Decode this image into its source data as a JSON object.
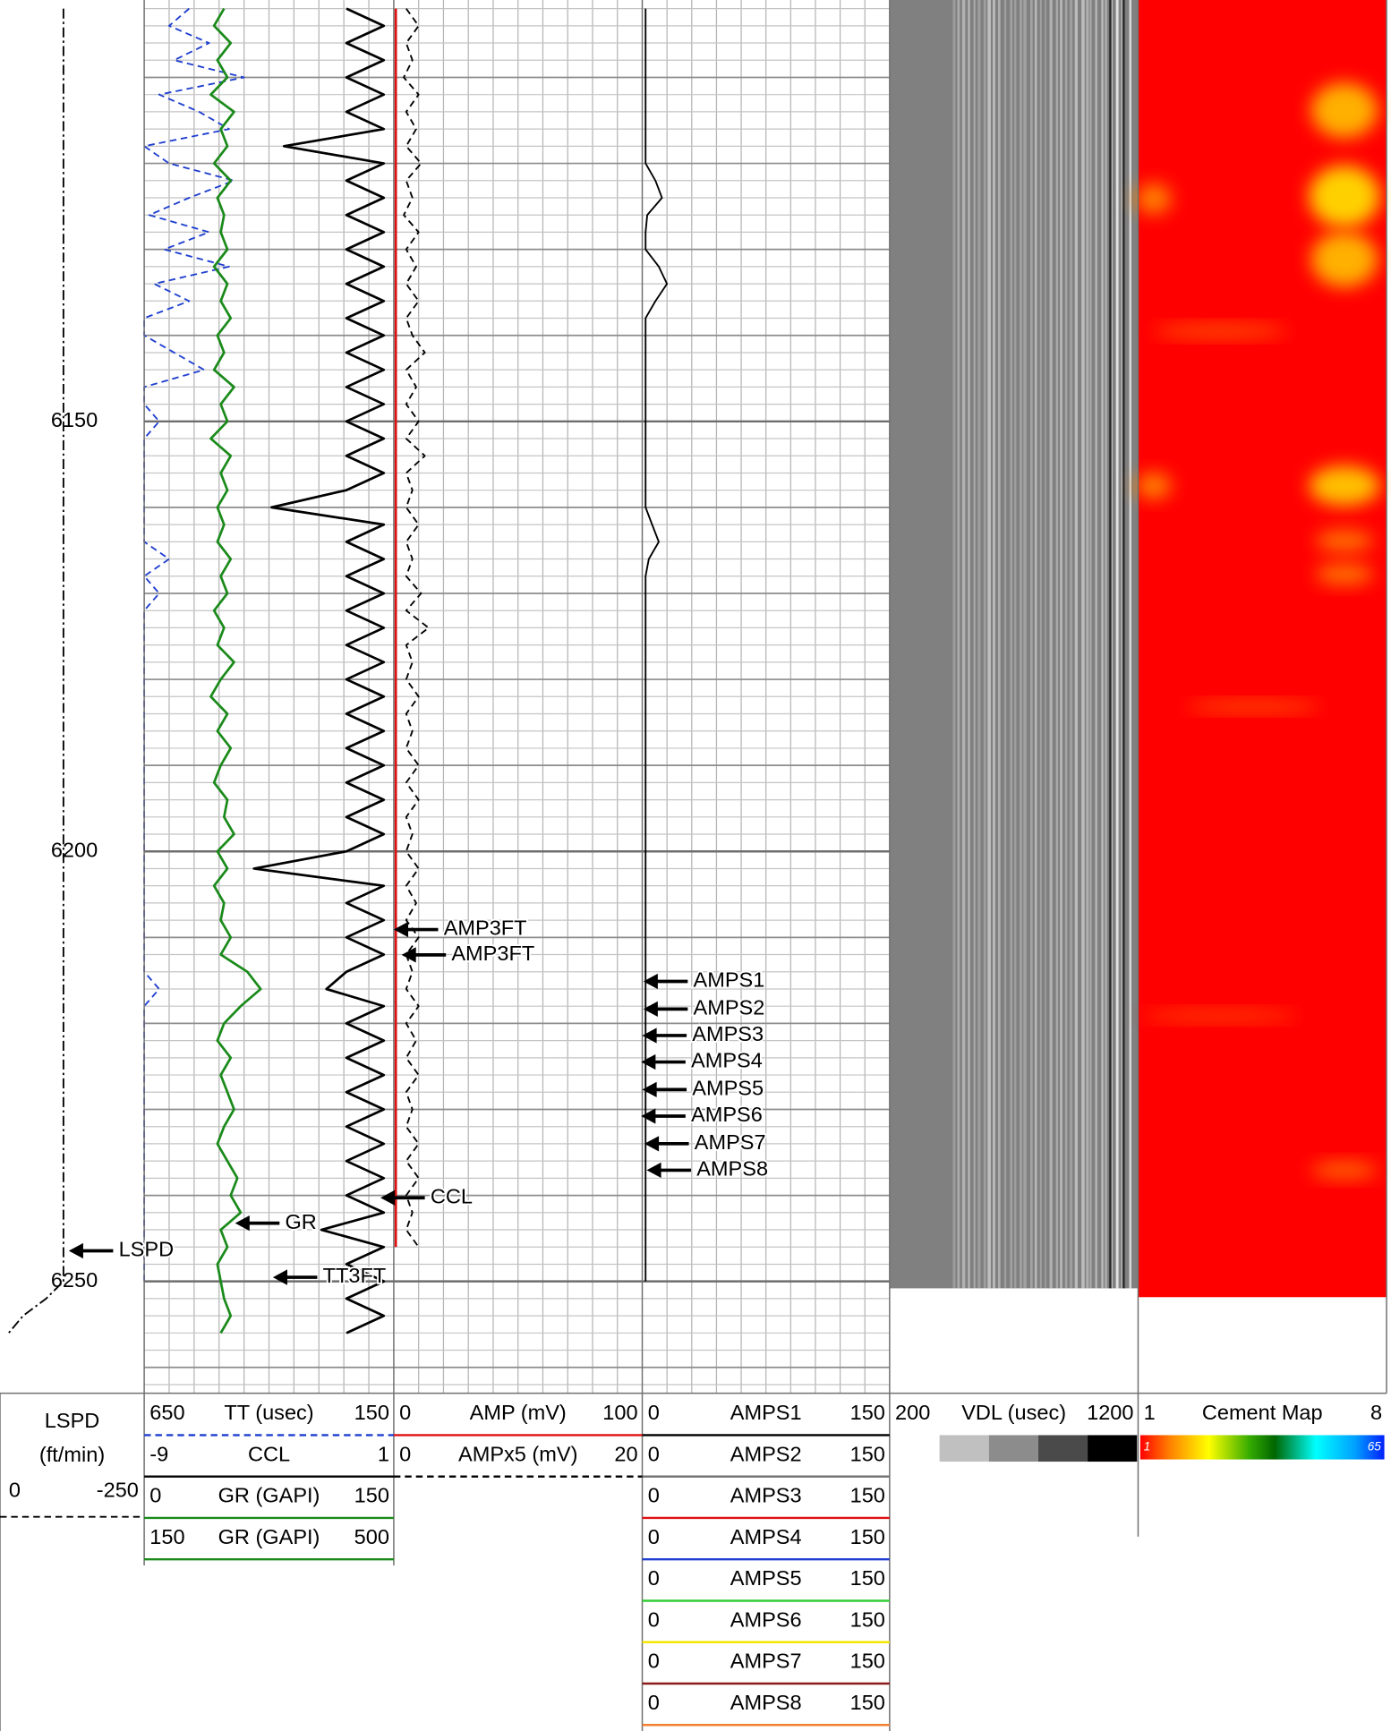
{
  "chart_data": {
    "type": "well-log",
    "ylim": [
      6101,
      6263
    ],
    "yticks": [
      6150,
      6200,
      6250
    ],
    "grid": true,
    "depth": [
      6102,
      6104,
      6106,
      6108,
      6110,
      6112,
      6114,
      6116,
      6118,
      6120,
      6122,
      6124,
      6126,
      6128,
      6130,
      6132,
      6134,
      6136,
      6138,
      6140,
      6142,
      6144,
      6146,
      6148,
      6150,
      6152,
      6154,
      6156,
      6158,
      6160,
      6162,
      6164,
      6166,
      6168,
      6170,
      6172,
      6174,
      6176,
      6178,
      6180,
      6182,
      6184,
      6186,
      6188,
      6190,
      6192,
      6194,
      6196,
      6198,
      6200,
      6202,
      6204,
      6206,
      6208,
      6210,
      6212,
      6214,
      6216,
      6218,
      6220,
      6222,
      6224,
      6226,
      6228,
      6230,
      6232,
      6234,
      6236,
      6238,
      6240,
      6242,
      6244,
      6246,
      6248,
      6250,
      6252,
      6254,
      6256
    ],
    "tracks": [
      {
        "curves": [
          {
            "name": "LSPD",
            "unit": "(ft/min)",
            "left": 0,
            "right": -250,
            "color": "#000000",
            "dash": "dash-dot",
            "values": [
              -110,
              -110,
              -110,
              -110,
              -110,
              -110,
              -110,
              -110,
              -110,
              -110,
              -110,
              -110,
              -110,
              -110,
              -110,
              -110,
              -110,
              -110,
              -110,
              -110,
              -110,
              -110,
              -110,
              -110,
              -110,
              -110,
              -110,
              -110,
              -110,
              -110,
              -110,
              -110,
              -110,
              -110,
              -110,
              -110,
              -110,
              -110,
              -110,
              -110,
              -110,
              -110,
              -110,
              -110,
              -110,
              -110,
              -110,
              -110,
              -110,
              -110,
              -110,
              -110,
              -110,
              -110,
              -110,
              -110,
              -110,
              -110,
              -110,
              -110,
              -110,
              -110,
              -110,
              -110,
              -110,
              -110,
              -110,
              -110,
              -110,
              -110,
              -110,
              -110,
              -110,
              -110,
              -110,
              -80,
              -40,
              -15
            ]
          }
        ]
      },
      {
        "curves": [
          {
            "name": "TT (usec)",
            "left": 650,
            "right": 150,
            "color": "#1f3fd0",
            "dash": "dashed",
            "values": [
              560,
              600,
              520,
              590,
              450,
              620,
              540,
              480,
              650,
              600,
              470,
              560,
              640,
              520,
              610,
              480,
              630,
              560,
              650,
              650,
              590,
              530,
              650,
              650,
              620,
              650,
              650,
              650,
              650,
              650,
              650,
              650,
              600,
              650,
              620,
              650,
              650,
              650,
              650,
              650,
              650,
              650,
              650,
              650,
              650,
              650,
              650,
              650,
              650,
              650,
              650,
              650,
              650,
              650,
              650,
              650,
              650,
              620,
              650,
              650,
              650,
              650,
              650,
              650,
              650,
              650,
              650,
              650,
              650,
              650,
              650,
              650,
              650,
              650,
              650,
              null,
              null,
              null
            ]
          },
          {
            "name": "CCL",
            "left": -9,
            "right": 1,
            "color": "#000000",
            "dash": "solid",
            "values": [
              -0.9,
              0.6,
              -0.9,
              0.6,
              -0.9,
              0.6,
              -0.9,
              0.6,
              -3.4,
              0.6,
              -0.9,
              0.6,
              -0.9,
              0.6,
              -0.9,
              0.6,
              -0.9,
              0.6,
              -0.9,
              0.6,
              -0.9,
              0.6,
              -0.9,
              0.6,
              -0.9,
              0.6,
              -0.9,
              0.6,
              -0.9,
              -3.9,
              0.6,
              -0.9,
              0.6,
              -0.9,
              0.6,
              -0.9,
              0.6,
              -0.9,
              0.6,
              -0.9,
              0.6,
              -0.9,
              0.6,
              -0.9,
              0.6,
              -0.9,
              0.6,
              -0.9,
              0.6,
              -0.9,
              -4.6,
              0.6,
              -0.9,
              0.6,
              -0.9,
              0.6,
              -0.9,
              -1.7,
              0.6,
              -0.9,
              0.6,
              -0.9,
              0.6,
              -0.9,
              0.6,
              -0.9,
              0.6,
              -0.9,
              0.6,
              -0.9,
              0.6,
              -1.9,
              0.6,
              -0.9,
              0.6,
              -0.9,
              0.6,
              -0.9
            ]
          },
          {
            "name": "GR (GAPI)",
            "left": 0,
            "right": 150,
            "color": "#1a8a1a",
            "dash": "solid",
            "values": [
              48,
              42,
              52,
              44,
              50,
              40,
              54,
              46,
              50,
              42,
              52,
              44,
              48,
              46,
              50,
              42,
              50,
              46,
              52,
              44,
              48,
              42,
              54,
              46,
              50,
              40,
              52,
              46,
              50,
              44,
              48,
              44,
              52,
              46,
              50,
              42,
              48,
              44,
              54,
              46,
              40,
              50,
              44,
              52,
              46,
              42,
              50,
              48,
              54,
              44,
              50,
              42,
              48,
              46,
              52,
              46,
              62,
              70,
              58,
              48,
              44,
              52,
              46,
              50,
              54,
              48,
              44,
              50,
              56,
              52,
              58,
              46,
              50,
              44,
              46,
              48,
              52,
              46
            ]
          },
          {
            "name": "GR (GAPI)",
            "left": 150,
            "right": 500,
            "color": "#1a8a1a",
            "dash": "solid"
          }
        ]
      },
      {
        "curves": [
          {
            "name": "AMP (mV)",
            "left": 0,
            "right": 100,
            "color": "#e01010",
            "dash": "solid",
            "values": [
              0.8,
              0.8,
              0.8,
              0.8,
              0.8,
              0.8,
              0.8,
              0.8,
              0.8,
              0.8,
              0.8,
              0.8,
              0.8,
              0.8,
              0.8,
              0.8,
              0.8,
              0.8,
              0.8,
              0.8,
              0.8,
              0.8,
              0.8,
              0.8,
              0.8,
              0.8,
              0.8,
              0.8,
              0.8,
              0.8,
              0.8,
              0.8,
              0.8,
              0.8,
              0.8,
              0.8,
              0.8,
              0.8,
              0.8,
              0.8,
              0.8,
              0.8,
              0.8,
              0.8,
              0.8,
              0.8,
              0.8,
              0.8,
              0.8,
              0.8,
              0.8,
              0.8,
              0.8,
              0.8,
              0.8,
              0.8,
              0.8,
              0.8,
              0.8,
              0.8,
              0.8,
              0.8,
              0.8,
              0.8,
              0.8,
              0.8,
              0.8,
              0.8,
              0.8,
              0.8,
              0.8,
              0.8,
              0.8,
              null,
              null,
              null,
              null,
              null
            ]
          },
          {
            "name": "AMPx5 (mV)",
            "left": 0,
            "right": 20,
            "color": "#000000",
            "dash": "dashed",
            "values": [
              1,
              2,
              1,
              1.5,
              0.8,
              2,
              1,
              1.8,
              1,
              2.2,
              1,
              1.5,
              0.8,
              2,
              1,
              1.8,
              1,
              2,
              1,
              1.5,
              2.5,
              1,
              1.8,
              1,
              2,
              1,
              2.5,
              1,
              1.5,
              1,
              2,
              1,
              1.5,
              1,
              2.2,
              1,
              2.8,
              1,
              1.5,
              1,
              2,
              1,
              1.5,
              1,
              2,
              1,
              2,
              1,
              1.5,
              1,
              2,
              1,
              1.8,
              1,
              2,
              1,
              1.5,
              1,
              2,
              1,
              1.8,
              1,
              2,
              1,
              1.5,
              1,
              2,
              1,
              2,
              1,
              1.5,
              1,
              2,
              null,
              null,
              null,
              null,
              null
            ]
          }
        ]
      },
      {
        "curves": [
          {
            "name": "AMPS1",
            "left": 0,
            "right": 150,
            "color": "#000000",
            "dash": "solid",
            "values": [
              2,
              2,
              2,
              2,
              2,
              2,
              2,
              2,
              2,
              2,
              8,
              12,
              3,
              2,
              2,
              10,
              15,
              8,
              2,
              2,
              2,
              2,
              2,
              2,
              2,
              2,
              2,
              2,
              2,
              2,
              6,
              10,
              4,
              2,
              2,
              2,
              2,
              2,
              2,
              2,
              2,
              2,
              2,
              2,
              2,
              2,
              2,
              2,
              2,
              2,
              2,
              2,
              2,
              2,
              2,
              2,
              2,
              2,
              2,
              2,
              2,
              2,
              2,
              2,
              2,
              2,
              2,
              2,
              2,
              2,
              2,
              2,
              2,
              2,
              2,
              null,
              null,
              null
            ]
          },
          {
            "name": "AMPS2",
            "left": 0,
            "right": 150,
            "color": "#707070",
            "dash": "solid"
          },
          {
            "name": "AMPS3",
            "left": 0,
            "right": 150,
            "color": "#e01010",
            "dash": "solid"
          },
          {
            "name": "AMPS4",
            "left": 0,
            "right": 150,
            "color": "#1f3fd0",
            "dash": "solid"
          },
          {
            "name": "AMPS5",
            "left": 0,
            "right": 150,
            "color": "#33cc33",
            "dash": "solid"
          },
          {
            "name": "AMPS6",
            "left": 0,
            "right": 150,
            "color": "#f2e600",
            "dash": "solid"
          },
          {
            "name": "AMPS7",
            "left": 0,
            "right": 150,
            "color": "#8b1a1a",
            "dash": "solid"
          },
          {
            "name": "AMPS8",
            "left": 0,
            "right": 150,
            "color": "#f08030",
            "dash": "solid"
          }
        ]
      },
      {
        "curves": [
          {
            "name": "VDL (usec)",
            "left": 200,
            "right": 1200
          }
        ]
      },
      {
        "curves": [
          {
            "name": "Cement Map",
            "left": 1,
            "right": 8,
            "colorbar_ticks": [
              1,
              65
            ]
          }
        ]
      }
    ],
    "annotations": [
      "AMP3FT",
      "AMP3FT",
      "AMPS1",
      "AMPS2",
      "AMPS3",
      "AMPS4",
      "AMPS5",
      "AMPS6",
      "AMPS7",
      "AMPS8",
      "CCL",
      "GR",
      "LSPD",
      "TT3FT"
    ]
  }
}
